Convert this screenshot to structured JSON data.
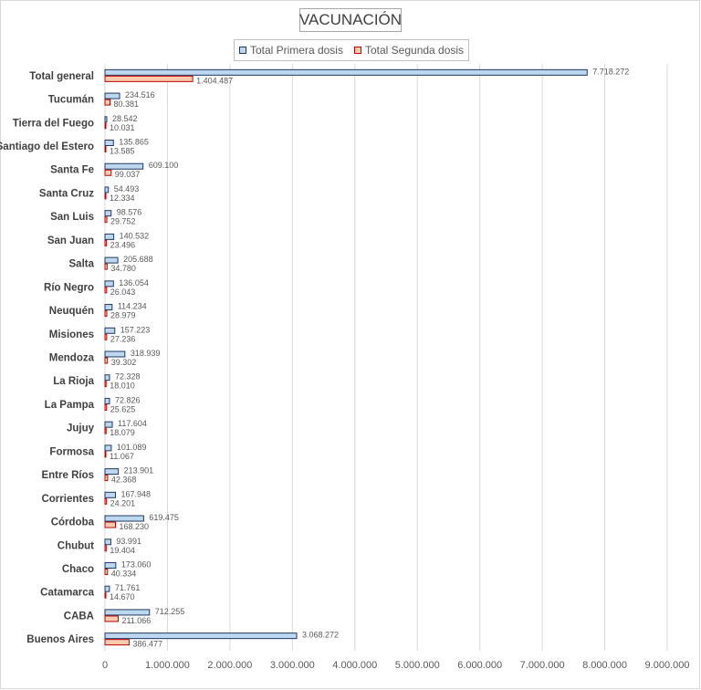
{
  "chart_data": {
    "type": "bar",
    "orientation": "horizontal",
    "title": "VACUNACIÓN",
    "categories": [
      "Total general",
      "Tucumán",
      "Tierra del Fuego",
      "Santiago del Estero",
      "Santa Fe",
      "Santa Cruz",
      "San Luis",
      "San Juan",
      "Salta",
      "Río Negro",
      "Neuquén",
      "Misiones",
      "Mendoza",
      "La Rioja",
      "La Pampa",
      "Jujuy",
      "Formosa",
      "Entre Ríos",
      "Corrientes",
      "Córdoba",
      "Chubut",
      "Chaco",
      "Catamarca",
      "CABA",
      "Buenos Aires"
    ],
    "series": [
      {
        "name": "Total Primera dosis",
        "color": "#bdd7ee",
        "border": "#1f3864",
        "values": [
          7718272,
          234516,
          28542,
          135865,
          609100,
          54493,
          98576,
          140532,
          205688,
          136054,
          114234,
          157223,
          318939,
          72328,
          72826,
          117604,
          101089,
          213901,
          167948,
          619475,
          93991,
          173060,
          71761,
          712255,
          3068272
        ],
        "labels": [
          "7.718.272",
          "234.516",
          "28.542",
          "135.865",
          "609.100",
          "54.493",
          "98.576",
          "140.532",
          "205.688",
          "136.054",
          "114.234",
          "157.223",
          "318.939",
          "72.328",
          "72.826",
          "117.604",
          "101.089",
          "213.901",
          "167.948",
          "619.475",
          "93.991",
          "173.060",
          "71.761",
          "712.255",
          "3.068.272"
        ]
      },
      {
        "name": "Total Segunda dosis",
        "color": "#f8cbad",
        "border": "#c00000",
        "values": [
          1404487,
          80381,
          10031,
          13585,
          99037,
          12334,
          29752,
          23496,
          34780,
          26043,
          28979,
          27236,
          39302,
          18010,
          25625,
          18079,
          11067,
          42368,
          24201,
          168230,
          19404,
          40334,
          14670,
          211066,
          386477
        ],
        "labels": [
          "1.404.487",
          "80.381",
          "10.031",
          "13.585",
          "99.037",
          "12.334",
          "29.752",
          "23.496",
          "34.780",
          "26.043",
          "28.979",
          "27.236",
          "39.302",
          "18.010",
          "25.625",
          "18.079",
          "11.067",
          "42.368",
          "24.201",
          "168.230",
          "19.404",
          "40.334",
          "14.670",
          "211.066",
          "386.477"
        ]
      }
    ],
    "xlim": [
      0,
      9000000
    ],
    "x_ticks": [
      0,
      1000000,
      2000000,
      3000000,
      4000000,
      5000000,
      6000000,
      7000000,
      8000000,
      9000000
    ],
    "x_tick_labels": [
      "0",
      "1.000.000",
      "2.000.000",
      "3.000.000",
      "4.000.000",
      "5.000.000",
      "6.000.000",
      "7.000.000",
      "8.000.000",
      "9.000.000"
    ],
    "grid": true,
    "legend_position": "top"
  }
}
